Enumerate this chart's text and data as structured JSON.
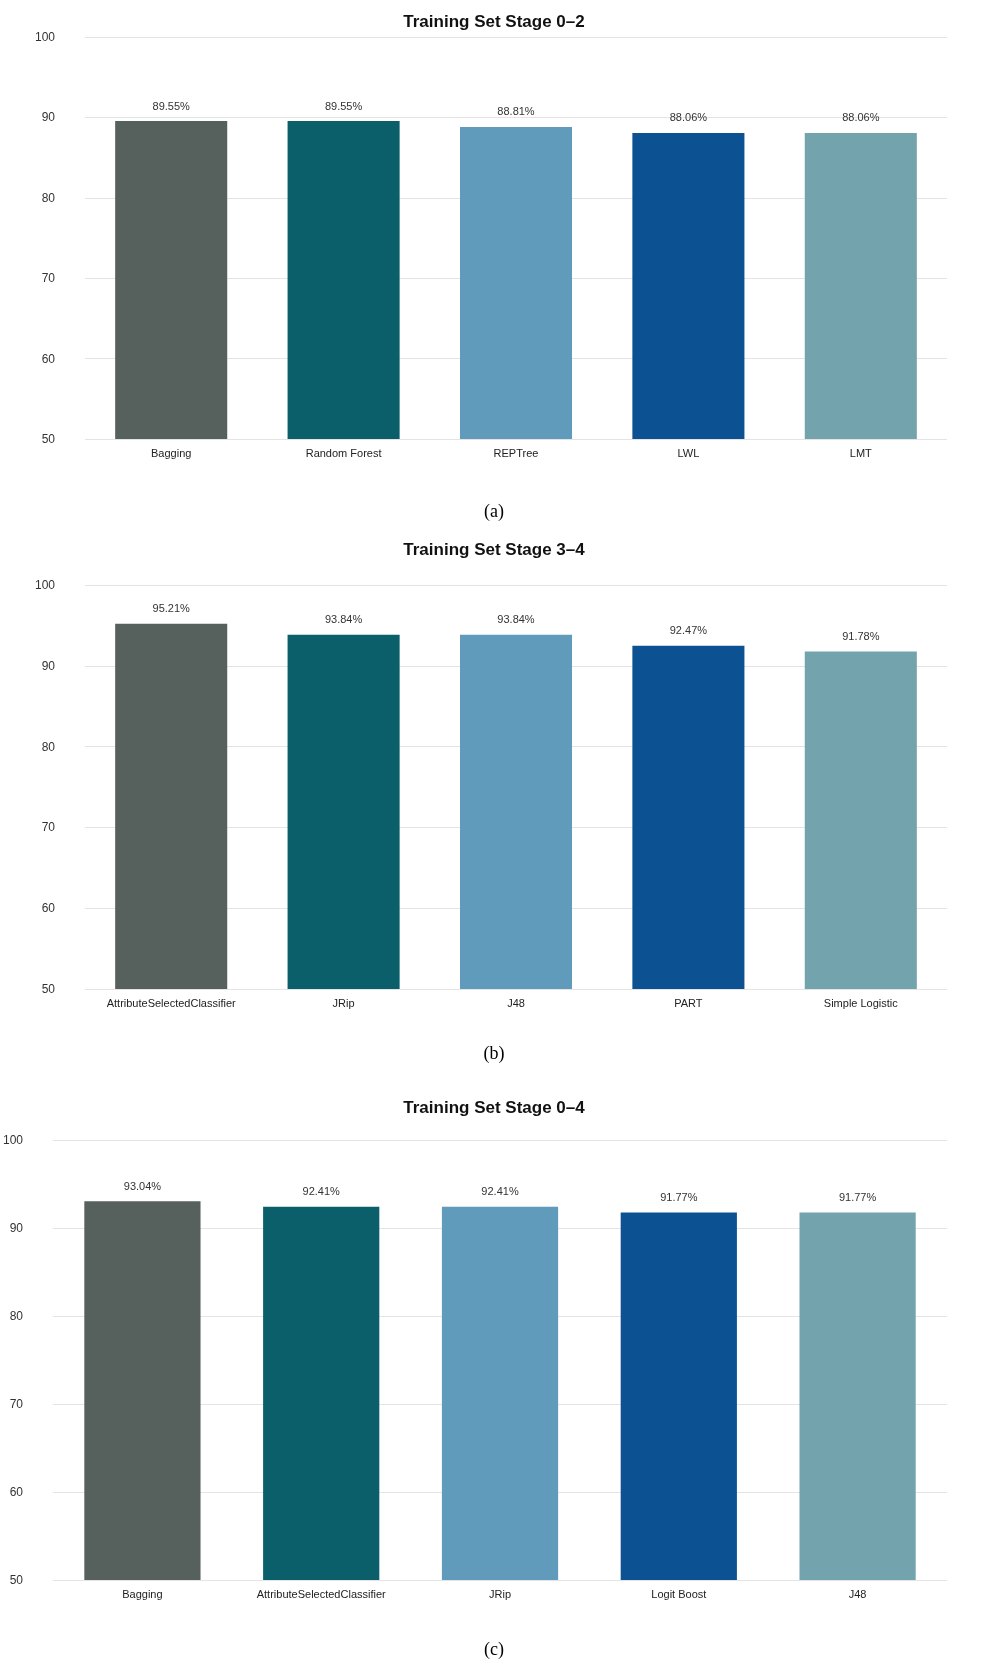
{
  "chart_data": [
    {
      "type": "bar",
      "title": "Training Set Stage 0–2",
      "categories": [
        "Bagging",
        "Random Forest",
        "REPTree",
        "LWL",
        "LMT"
      ],
      "values": [
        89.55,
        89.55,
        88.81,
        88.06,
        88.06
      ],
      "value_labels": [
        "89.55%",
        "89.55%",
        "88.81%",
        "88.06%",
        "88.06%"
      ],
      "colors": [
        "#56605c",
        "#0b5f6b",
        "#619bbb",
        "#0c5192",
        "#73a3ac"
      ],
      "ylim": [
        50,
        100
      ],
      "yticks": [
        50,
        60,
        70,
        80,
        90,
        100
      ],
      "grid": "y",
      "annotations": [
        "(a)"
      ]
    },
    {
      "type": "bar",
      "title": "Training Set Stage 3–4",
      "categories": [
        "AttributeSelectedClassifier",
        "JRip",
        "J48",
        "PART",
        "Simple Logistic"
      ],
      "values": [
        95.21,
        93.84,
        93.84,
        92.47,
        91.78
      ],
      "value_labels": [
        "95.21%",
        "93.84%",
        "93.84%",
        "92.47%",
        "91.78%"
      ],
      "colors": [
        "#56605c",
        "#0b5f6b",
        "#619bbb",
        "#0c5192",
        "#73a3ac"
      ],
      "ylim": [
        50,
        100
      ],
      "yticks": [
        50,
        60,
        70,
        80,
        90,
        100
      ],
      "grid": "y",
      "annotations": [
        "(b)"
      ]
    },
    {
      "type": "bar",
      "title": "Training Set Stage 0–4",
      "categories": [
        "Bagging",
        "AttributeSelectedClassifier",
        "JRip",
        "Logit Boost",
        "J48"
      ],
      "values": [
        93.04,
        92.41,
        92.41,
        91.77,
        91.77
      ],
      "value_labels": [
        "93.04%",
        "92.41%",
        "92.41%",
        "91.77%",
        "91.77%"
      ],
      "colors": [
        "#56605c",
        "#0b5f6b",
        "#619bbb",
        "#0c5192",
        "#73a3ac"
      ],
      "ylim": [
        50,
        100
      ],
      "yticks": [
        50,
        60,
        70,
        80,
        90,
        100
      ],
      "grid": "y",
      "annotations": [
        "(c)"
      ]
    }
  ]
}
